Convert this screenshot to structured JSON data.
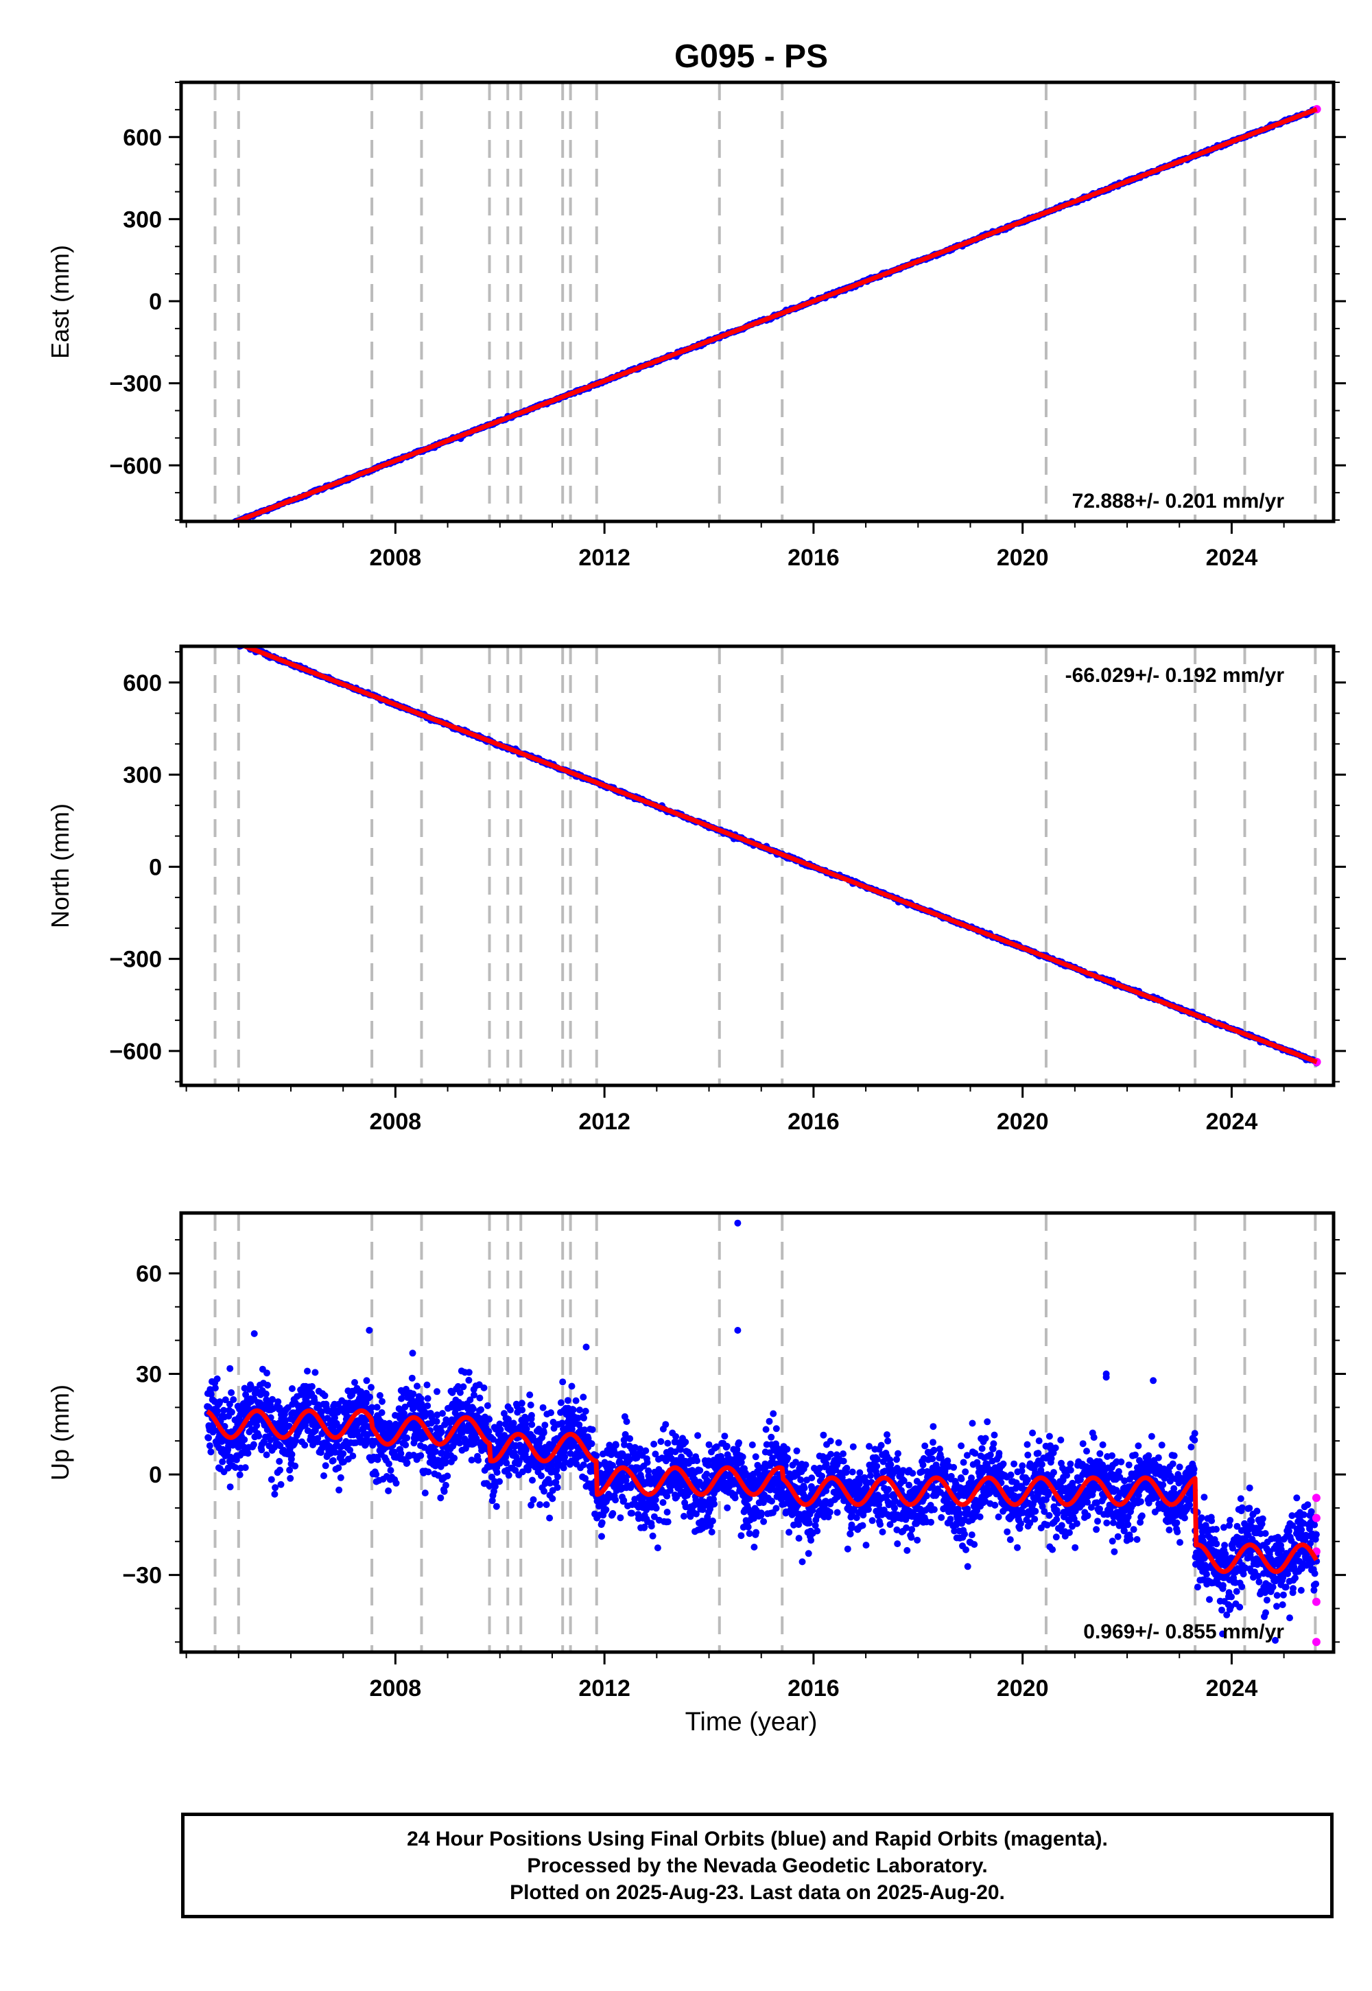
{
  "chart_data": {
    "type": "scatter",
    "title": "G095 - PS",
    "xlabel": "Time (year)",
    "xlim": [
      2003.9,
      2025.95
    ],
    "x_ticks": [
      2008,
      2012,
      2016,
      2020,
      2024
    ],
    "x_minor_tick_step": 1,
    "grid": false,
    "colors": {
      "final_orbit_points": "#0000ff",
      "rapid_orbit_points": "#ff00ff",
      "model_fit": "#ff0000",
      "event_lines": "#bbbbbb"
    },
    "event_lines_year": [
      2004.55,
      2005.0,
      2007.55,
      2008.5,
      2009.8,
      2010.15,
      2010.4,
      2011.2,
      2011.35,
      2011.85,
      2014.2,
      2015.4,
      2020.45,
      2023.3,
      2024.25,
      2025.6
    ],
    "panels": [
      {
        "name": "East",
        "ylabel": "East (mm)",
        "ylim": [
          -805,
          800
        ],
        "y_ticks": [
          -600,
          -300,
          0,
          300,
          600
        ],
        "y_minor_tick_step": 100,
        "rate_label": "72.888+/- 0.201 mm/yr",
        "rate_position": "bottom-right",
        "trend": {
          "rate_mm_per_yr": 72.888,
          "value_at_2016": 0,
          "start_year": 2004.4,
          "end_year": 2025.63
        },
        "noise_mm": 2.5
      },
      {
        "name": "North",
        "ylabel": "North (mm)",
        "ylim": [
          -712,
          718
        ],
        "y_ticks": [
          -600,
          -300,
          0,
          300,
          600
        ],
        "y_minor_tick_step": 100,
        "rate_label": "-66.029+/- 0.192 mm/yr",
        "rate_position": "top-right",
        "trend": {
          "rate_mm_per_yr": -66.029,
          "value_at_2016": 0,
          "start_year": 2004.4,
          "end_year": 2025.63
        },
        "noise_mm": 2.5
      },
      {
        "name": "Up",
        "ylabel": "Up (mm)",
        "ylim": [
          -53,
          78
        ],
        "y_ticks": [
          -30,
          0,
          30,
          60
        ],
        "y_minor_tick_step": 10,
        "rate_label": "0.969+/- 0.855 mm/yr",
        "rate_position": "bottom-right",
        "model_segments": [
          {
            "start": 2004.4,
            "end": 2007.55,
            "level": 15
          },
          {
            "start": 2007.55,
            "end": 2009.8,
            "level": 13
          },
          {
            "start": 2009.8,
            "end": 2011.85,
            "level": 8
          },
          {
            "start": 2011.85,
            "end": 2015.4,
            "level": -2
          },
          {
            "start": 2015.4,
            "end": 2023.3,
            "level": -5
          },
          {
            "start": 2023.3,
            "end": 2025.63,
            "level": -25
          }
        ],
        "seasonal_amplitude_mm": 4,
        "noise_mm": 6,
        "outliers": [
          [
            2014.55,
            75
          ],
          [
            2014.55,
            43
          ],
          [
            2005.3,
            42
          ],
          [
            2007.5,
            43
          ],
          [
            2011.65,
            38
          ],
          [
            2021.6,
            29
          ],
          [
            2021.6,
            30
          ],
          [
            2022.5,
            28
          ]
        ],
        "rapid_orbit_points": [
          [
            2025.62,
            -7
          ],
          [
            2025.62,
            -13
          ],
          [
            2025.62,
            -23
          ],
          [
            2025.62,
            -38
          ],
          [
            2025.62,
            -50
          ]
        ]
      }
    ]
  },
  "footer": {
    "line1": "24 Hour Positions Using Final Orbits (blue) and Rapid Orbits (magenta).",
    "line2": "Processed by the Nevada Geodetic Laboratory.",
    "line3": "Plotted on 2025-Aug-23. Last data on 2025-Aug-20."
  }
}
